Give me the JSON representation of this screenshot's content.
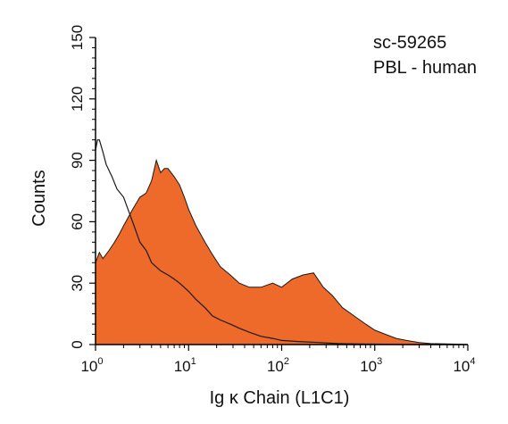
{
  "chart_data": {
    "type": "area",
    "title": "",
    "xlabel": "Ig κ Chain (L1C1)",
    "ylabel": "Counts",
    "xscale": "log",
    "xlim": [
      1,
      10000
    ],
    "ylim": [
      0,
      150
    ],
    "x_ticks": [
      {
        "base": "10",
        "exp": "0",
        "value": 1
      },
      {
        "base": "10",
        "exp": "1",
        "value": 10
      },
      {
        "base": "10",
        "exp": "2",
        "value": 100
      },
      {
        "base": "10",
        "exp": "3",
        "value": 1000
      },
      {
        "base": "10",
        "exp": "4",
        "value": 10000
      }
    ],
    "y_ticks": [
      "0",
      "30",
      "60",
      "90",
      "120",
      "150"
    ],
    "y_tick_values": [
      0,
      30,
      60,
      90,
      120,
      150
    ],
    "annotations": [
      "sc-59265",
      "PBL - human"
    ],
    "colors": {
      "fill": "#ee6a2a",
      "line": "#1a1a1a",
      "axis": "#000000"
    },
    "series": [
      {
        "role": "stained (filled)",
        "x": [
          1,
          1.1,
          1.2,
          1.4,
          1.6,
          1.8,
          2,
          2.5,
          3,
          3.5,
          4,
          4.5,
          5,
          5.5,
          6,
          7,
          8,
          9,
          10,
          12,
          15,
          18,
          22,
          28,
          35,
          45,
          60,
          80,
          100,
          130,
          170,
          220,
          280,
          350,
          450,
          600,
          800,
          1000,
          1300,
          1700,
          2200,
          3000,
          4000,
          6000,
          10000
        ],
        "y": [
          40,
          45,
          42,
          46,
          50,
          54,
          58,
          66,
          72,
          74,
          80,
          90,
          84,
          86,
          86,
          82,
          78,
          72,
          66,
          58,
          50,
          44,
          38,
          34,
          30,
          28,
          28,
          30,
          28,
          32,
          34,
          35,
          28,
          24,
          18,
          14,
          10,
          7,
          5,
          3,
          2,
          1,
          0.5,
          0.3,
          0
        ]
      },
      {
        "role": "control (outline)",
        "x": [
          1,
          1.05,
          1.1,
          1.2,
          1.3,
          1.5,
          1.7,
          2,
          2.5,
          3,
          3.5,
          4,
          5,
          6,
          7,
          8,
          10,
          12,
          15,
          18,
          22,
          28,
          35,
          45,
          60,
          80,
          100,
          150,
          250,
          400,
          700,
          1000,
          2000,
          10000
        ],
        "y": [
          95,
          100,
          100,
          94,
          88,
          82,
          76,
          72,
          60,
          50,
          46,
          40,
          36,
          34,
          32,
          30,
          26,
          22,
          18,
          14,
          12,
          10,
          8,
          6,
          4,
          3,
          2,
          1.5,
          1,
          0.5,
          0.3,
          0.2,
          0,
          0
        ]
      }
    ]
  }
}
